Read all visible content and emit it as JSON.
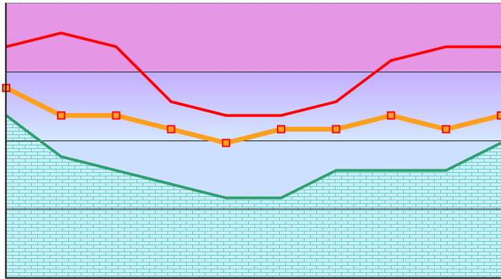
{
  "chart_data": {
    "type": "line",
    "title": "",
    "xlabel": "",
    "ylabel": "",
    "ylim": [
      0,
      100
    ],
    "grid": true,
    "x": [
      1,
      2,
      3,
      4,
      5,
      6,
      7,
      8,
      9,
      10
    ],
    "series": [
      {
        "color": "#ff0000",
        "values": [
          84,
          89,
          84,
          64,
          59,
          59,
          64,
          79,
          84,
          84
        ],
        "markers": false
      },
      {
        "color": "#ff9f1f",
        "values": [
          69,
          59,
          59,
          54,
          49,
          54,
          54,
          59,
          54,
          59
        ],
        "markers": true,
        "marker_fill": "#ff9f1f",
        "marker_edge": "#ff0000"
      },
      {
        "color": "#2e9e6e",
        "values": [
          59,
          44,
          39,
          34,
          29,
          29,
          39,
          39,
          39,
          49
        ],
        "markers": false
      }
    ],
    "background": {
      "bands": [
        {
          "from": 75,
          "to": 100,
          "color": "#e89ae6"
        },
        {
          "from": 50,
          "to": 75,
          "color": "#c7b5ff"
        },
        {
          "from": 25,
          "to": 50,
          "color": "#cde0ff"
        }
      ],
      "hatched_fill_below_lowest_series": {
        "fill": "#cbf1f5",
        "pattern_color": "#5cc7cf",
        "pattern": "brick"
      }
    }
  }
}
